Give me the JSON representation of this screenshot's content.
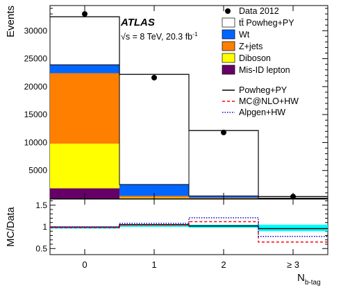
{
  "chart_data": [
    {
      "type": "bar",
      "stacked": true,
      "ylabel": "Events",
      "xlabel": "N",
      "xlabel_subscript": "b-tag",
      "categories": [
        "0",
        "1",
        "2",
        "≥ 3"
      ],
      "ylim": [
        0,
        34500
      ],
      "yticks": [
        5000,
        10000,
        15000,
        20000,
        25000,
        30000
      ],
      "atlas_label": "ATLAS",
      "energy_label": "√s = 8 TeV, 20.3 fb",
      "energy_superscript": "-1",
      "series": [
        {
          "name": "Mis-ID lepton",
          "color": "#660066",
          "values": [
            1800,
            20,
            5,
            2
          ]
        },
        {
          "name": "Diboson",
          "color": "#ffff00",
          "values": [
            8000,
            120,
            40,
            5
          ]
        },
        {
          "name": "Z+jets",
          "color": "#ff7f00",
          "values": [
            12600,
            300,
            90,
            10
          ]
        },
        {
          "name": "Wt",
          "color": "#0066ff",
          "values": [
            1500,
            2050,
            310,
            30
          ]
        },
        {
          "name": "tt̄ Powheg+PY",
          "color": "#ffffff",
          "values": [
            8600,
            19700,
            11700,
            280
          ]
        }
      ],
      "data": {
        "name": "Data 2012",
        "values": [
          33000,
          21600,
          11800,
          330
        ]
      },
      "legend_lines": [
        {
          "name": "Powheg+PY",
          "color": "#000000",
          "style": "solid"
        },
        {
          "name": "MC@NLO+HW",
          "color": "#ff0000",
          "style": "dashed"
        },
        {
          "name": "Alpgen+HW",
          "color": "#0000cc",
          "style": "dotted"
        }
      ]
    },
    {
      "type": "line",
      "ylabel": "MC/Data",
      "categories": [
        "0",
        "1",
        "2",
        "≥ 3"
      ],
      "ylim": [
        0.36,
        1.64
      ],
      "yticks": [
        0.5,
        1,
        1.5
      ],
      "band": {
        "color": "#00ffff",
        "low": [
          0.96,
          1.0,
          0.98,
          0.9
        ],
        "high": [
          1.0,
          1.06,
          1.05,
          1.05
        ]
      },
      "series": [
        {
          "name": "Powheg+PY",
          "values": [
            0.995,
            1.05,
            1.02,
            0.96
          ]
        },
        {
          "name": "MC@NLO+HW",
          "values": [
            0.98,
            1.04,
            1.12,
            0.65
          ]
        },
        {
          "name": "Alpgen+HW",
          "values": [
            1.0,
            1.08,
            1.21,
            0.78
          ]
        }
      ]
    }
  ]
}
